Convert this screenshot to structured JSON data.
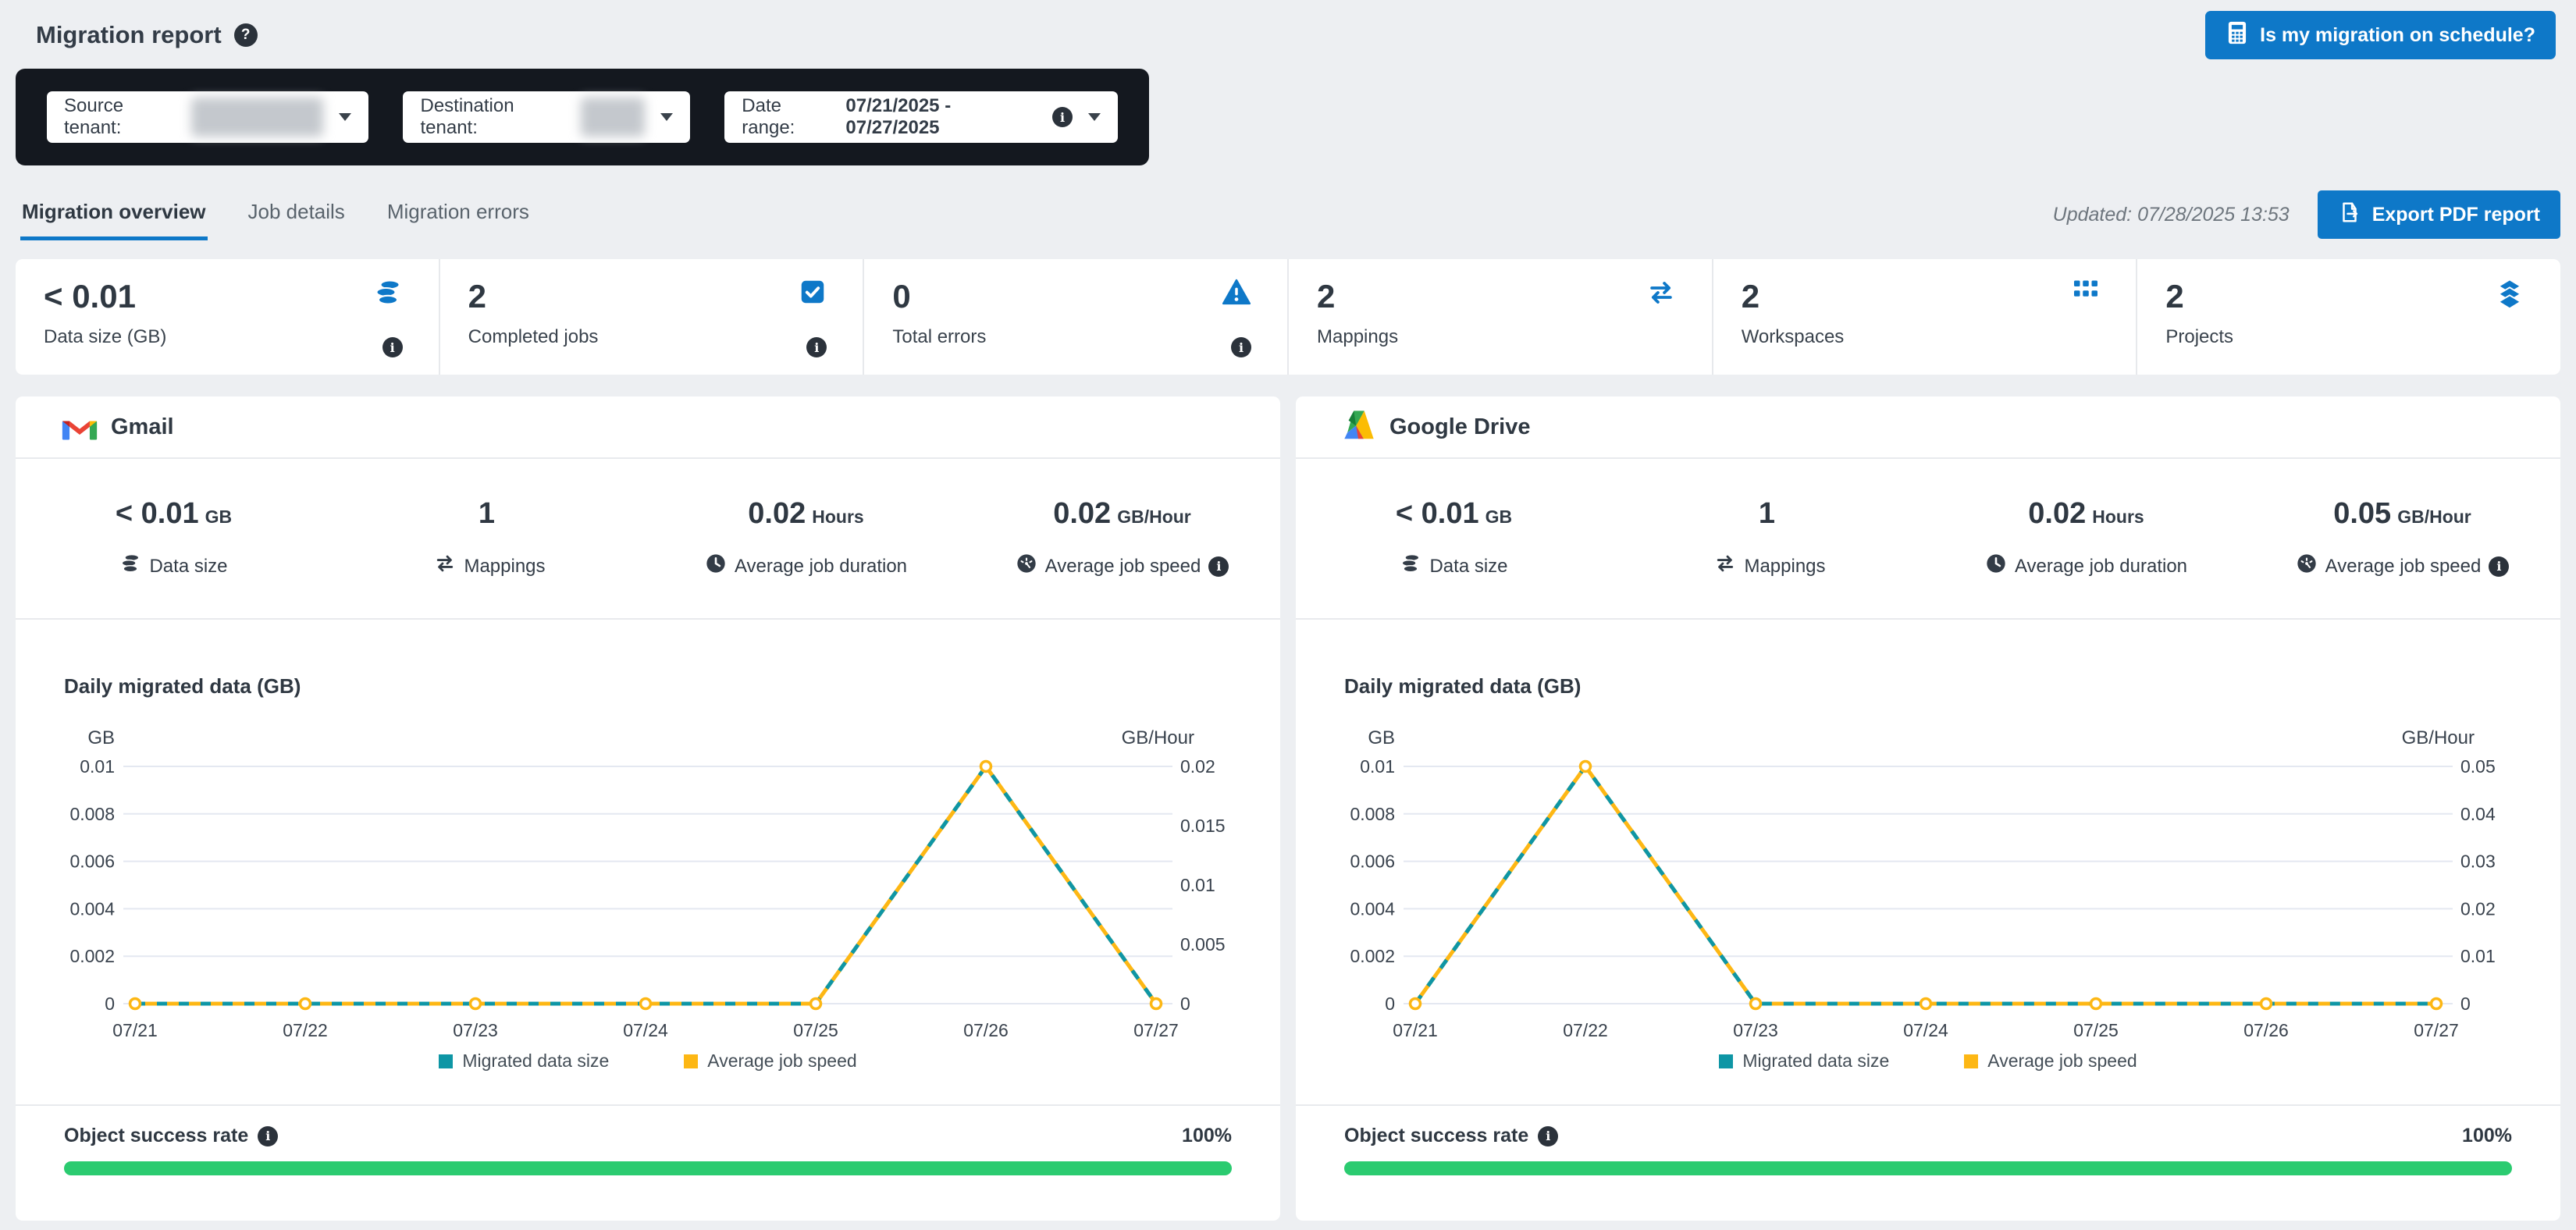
{
  "page": {
    "title": "Migration report"
  },
  "header": {
    "schedule_button": "Is my migration on schedule?"
  },
  "filters": {
    "source_label": "Source tenant:",
    "destination_label": "Destination tenant:",
    "date_label": "Date range:",
    "date_value": "07/21/2025 - 07/27/2025"
  },
  "tabs": [
    {
      "label": "Migration overview",
      "active": true
    },
    {
      "label": "Job details",
      "active": false
    },
    {
      "label": "Migration errors",
      "active": false
    }
  ],
  "toolbar": {
    "updated": "Updated: 07/28/2025 13:53",
    "export_label": "Export PDF report"
  },
  "summary_stats": [
    {
      "value": "< 0.01",
      "label": "Data size (GB)",
      "icon": "database-icon",
      "info": true
    },
    {
      "value": "2",
      "label": "Completed jobs",
      "icon": "checkbox-icon",
      "info": true
    },
    {
      "value": "0",
      "label": "Total errors",
      "icon": "warning-icon",
      "info": true
    },
    {
      "value": "2",
      "label": "Mappings",
      "icon": "swap-icon",
      "info": false
    },
    {
      "value": "2",
      "label": "Workspaces",
      "icon": "grid-icon",
      "info": false
    },
    {
      "value": "2",
      "label": "Projects",
      "icon": "layers-icon",
      "info": false
    }
  ],
  "services": [
    {
      "name": "Gmail",
      "stats": [
        {
          "value": "< 0.01",
          "unit": "GB",
          "label": "Data size",
          "icon": "database-icon",
          "info": false
        },
        {
          "value": "1",
          "unit": "",
          "label": "Mappings",
          "icon": "swap-icon",
          "info": false
        },
        {
          "value": "0.02",
          "unit": "Hours",
          "label": "Average job duration",
          "icon": "clock-icon",
          "info": false
        },
        {
          "value": "0.02",
          "unit": "GB/Hour",
          "label": "Average job speed",
          "icon": "speedometer-icon",
          "info": true
        }
      ],
      "success": {
        "label": "Object success rate",
        "value": "100%"
      }
    },
    {
      "name": "Google Drive",
      "stats": [
        {
          "value": "< 0.01",
          "unit": "GB",
          "label": "Data size",
          "icon": "database-icon",
          "info": false
        },
        {
          "value": "1",
          "unit": "",
          "label": "Mappings",
          "icon": "swap-icon",
          "info": false
        },
        {
          "value": "0.02",
          "unit": "Hours",
          "label": "Average job duration",
          "icon": "clock-icon",
          "info": false
        },
        {
          "value": "0.05",
          "unit": "GB/Hour",
          "label": "Average job speed",
          "icon": "speedometer-icon",
          "info": true
        }
      ],
      "success": {
        "label": "Object success rate",
        "value": "100%"
      }
    }
  ],
  "chart_data": [
    {
      "type": "line",
      "service": "Gmail",
      "title": "Daily migrated data (GB)",
      "x": [
        "07/21",
        "07/22",
        "07/23",
        "07/24",
        "07/25",
        "07/26",
        "07/27"
      ],
      "left_axis": {
        "label": "GB",
        "ticks": [
          "0.01",
          "0.008",
          "0.006",
          "0.004",
          "0.002",
          "0"
        ],
        "max": 0.01,
        "range": [
          0,
          0.01
        ]
      },
      "right_axis": {
        "label": "GB/Hour",
        "ticks": [
          "0.02",
          "0.015",
          "0.01",
          "0.005",
          "0"
        ],
        "max": 0.02,
        "range": [
          0,
          0.02
        ]
      },
      "series": [
        {
          "name": "Migrated data size",
          "axis": "left",
          "color": "#0e96a5",
          "values": [
            0,
            0,
            0,
            0,
            0,
            0.01,
            0
          ]
        },
        {
          "name": "Average job speed",
          "axis": "right",
          "color": "#fdb714",
          "values": [
            0,
            0,
            0,
            0,
            0,
            0.02,
            0
          ]
        }
      ],
      "grid": true,
      "legend_position": "bottom"
    },
    {
      "type": "line",
      "service": "Google Drive",
      "title": "Daily migrated data (GB)",
      "x": [
        "07/21",
        "07/22",
        "07/23",
        "07/24",
        "07/25",
        "07/26",
        "07/27"
      ],
      "left_axis": {
        "label": "GB",
        "ticks": [
          "0.01",
          "0.008",
          "0.006",
          "0.004",
          "0.002",
          "0"
        ],
        "max": 0.01,
        "range": [
          0,
          0.01
        ]
      },
      "right_axis": {
        "label": "GB/Hour",
        "ticks": [
          "0.05",
          "0.04",
          "0.03",
          "0.02",
          "0.01",
          "0"
        ],
        "max": 0.05,
        "range": [
          0,
          0.05
        ]
      },
      "series": [
        {
          "name": "Migrated data size",
          "axis": "left",
          "color": "#0e96a5",
          "values": [
            0,
            0.01,
            0,
            0,
            0,
            0,
            0
          ]
        },
        {
          "name": "Average job speed",
          "axis": "right",
          "color": "#fdb714",
          "values": [
            0,
            0.05,
            0,
            0,
            0,
            0,
            0
          ]
        }
      ],
      "grid": true,
      "legend_position": "bottom"
    }
  ],
  "colors": {
    "accent_blue": "#0e78c8",
    "teal": "#0e96a5",
    "yellow": "#fdb714",
    "green": "#2bcb70",
    "dark_bar": "#14181f"
  }
}
